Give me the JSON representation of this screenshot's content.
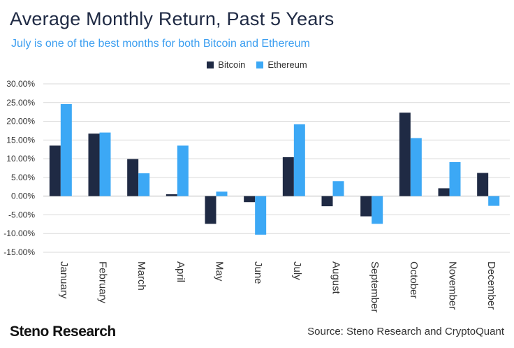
{
  "chart_data": {
    "type": "bar",
    "title": "Average Monthly Return, Past 5 Years",
    "subtitle": "July is one of the best months for both Bitcoin and Ethereum",
    "categories": [
      "January",
      "February",
      "March",
      "April",
      "May",
      "June",
      "July",
      "August",
      "September",
      "October",
      "November",
      "December"
    ],
    "series": [
      {
        "name": "Bitcoin",
        "color": "#1f2a44",
        "values": [
          13.5,
          16.7,
          9.9,
          0.5,
          -7.4,
          -1.6,
          10.4,
          -2.7,
          -5.4,
          22.3,
          2.1,
          6.2
        ]
      },
      {
        "name": "Ethereum",
        "color": "#3ca8f5",
        "values": [
          24.6,
          17.0,
          6.1,
          13.5,
          1.2,
          -10.3,
          19.2,
          4.0,
          -7.4,
          15.5,
          9.1,
          -2.6
        ]
      }
    ],
    "yticks": [
      "30.00%",
      "25.00%",
      "20.00%",
      "15.00%",
      "10.00%",
      "5.00%",
      "0.00%",
      "-5.00%",
      "-10.00%",
      "-15.00%"
    ],
    "ylim": [
      -15,
      30
    ],
    "ytick_step": 5,
    "grid": true,
    "legend_position": "top-center"
  },
  "footer": {
    "brand": "Steno Research",
    "source": "Source: Steno Research and CryptoQuant"
  }
}
